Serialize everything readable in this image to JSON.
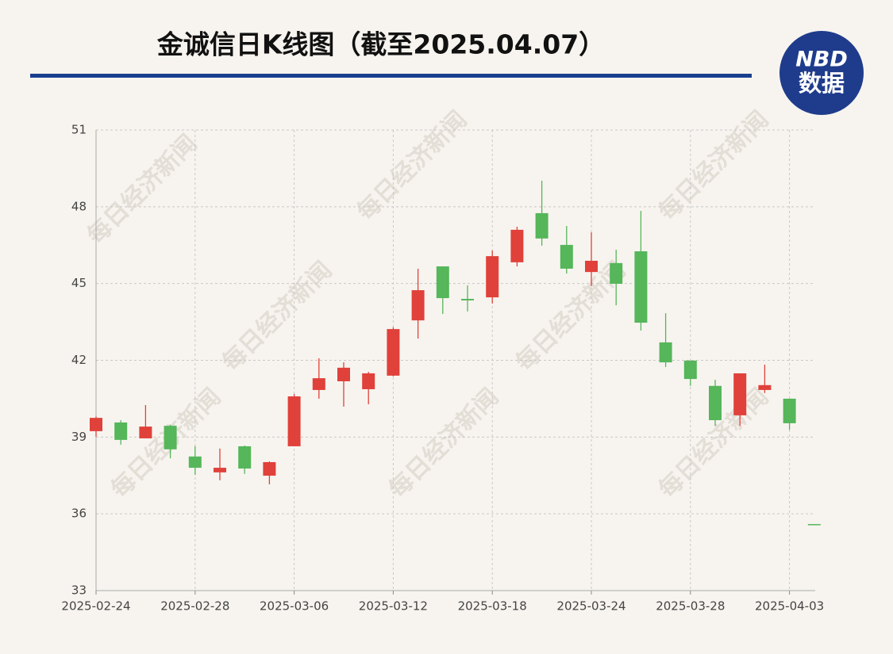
{
  "chart_data": {
    "type": "candlestick",
    "title": "金诚信日K线图（截至2025.04.07）",
    "logo": {
      "top": "NBD",
      "bottom": "数据"
    },
    "watermark": "每日经济新闻",
    "categories": [
      "2025-02-24",
      null,
      null,
      null,
      "2025-02-28",
      null,
      null,
      null,
      "2025-03-06",
      null,
      null,
      null,
      "2025-03-12",
      null,
      null,
      null,
      "2025-03-18",
      null,
      null,
      null,
      "2025-03-24",
      null,
      null,
      null,
      "2025-03-28",
      null,
      null,
      null,
      "2025-04-03",
      null
    ],
    "open": [
      39.23,
      39.57,
      38.95,
      39.44,
      38.24,
      37.62,
      38.64,
      37.49,
      38.64,
      40.84,
      41.18,
      40.87,
      41.4,
      43.56,
      45.67,
      44.4,
      44.46,
      45.83,
      47.75,
      46.51,
      45.45,
      45.8,
      46.26,
      42.7,
      41.99,
      41.0,
      39.85,
      40.84,
      40.5,
      35.6
    ],
    "high": [
      39.8,
      39.66,
      40.25,
      39.48,
      38.64,
      38.55,
      38.67,
      38.05,
      40.68,
      42.08,
      41.92,
      41.55,
      43.29,
      45.58,
      45.67,
      44.93,
      46.29,
      47.22,
      49.02,
      47.25,
      47.0,
      46.32,
      47.84,
      43.84,
      41.99,
      41.24,
      41.49,
      41.83,
      40.5,
      35.6
    ],
    "low": [
      39.01,
      38.7,
      38.95,
      38.17,
      37.52,
      37.31,
      37.56,
      37.15,
      38.64,
      40.5,
      40.19,
      40.28,
      41.37,
      42.85,
      43.81,
      43.91,
      44.22,
      45.67,
      46.48,
      45.39,
      44.9,
      44.15,
      43.16,
      41.74,
      41.0,
      39.44,
      39.44,
      40.72,
      39.29,
      35.6
    ],
    "close": [
      39.75,
      38.89,
      39.41,
      38.52,
      37.8,
      37.8,
      37.77,
      38.02,
      40.59,
      41.3,
      41.71,
      41.49,
      43.22,
      44.74,
      44.43,
      44.34,
      46.07,
      47.1,
      46.76,
      45.58,
      45.89,
      44.99,
      43.47,
      41.92,
      41.27,
      39.66,
      41.49,
      41.03,
      39.54,
      35.6
    ],
    "up_color": "#e0413a",
    "down_color": "#55b65a",
    "ylim": [
      33,
      51
    ],
    "yticks": [
      33,
      36,
      39,
      42,
      45,
      48,
      51
    ],
    "grid": true
  }
}
